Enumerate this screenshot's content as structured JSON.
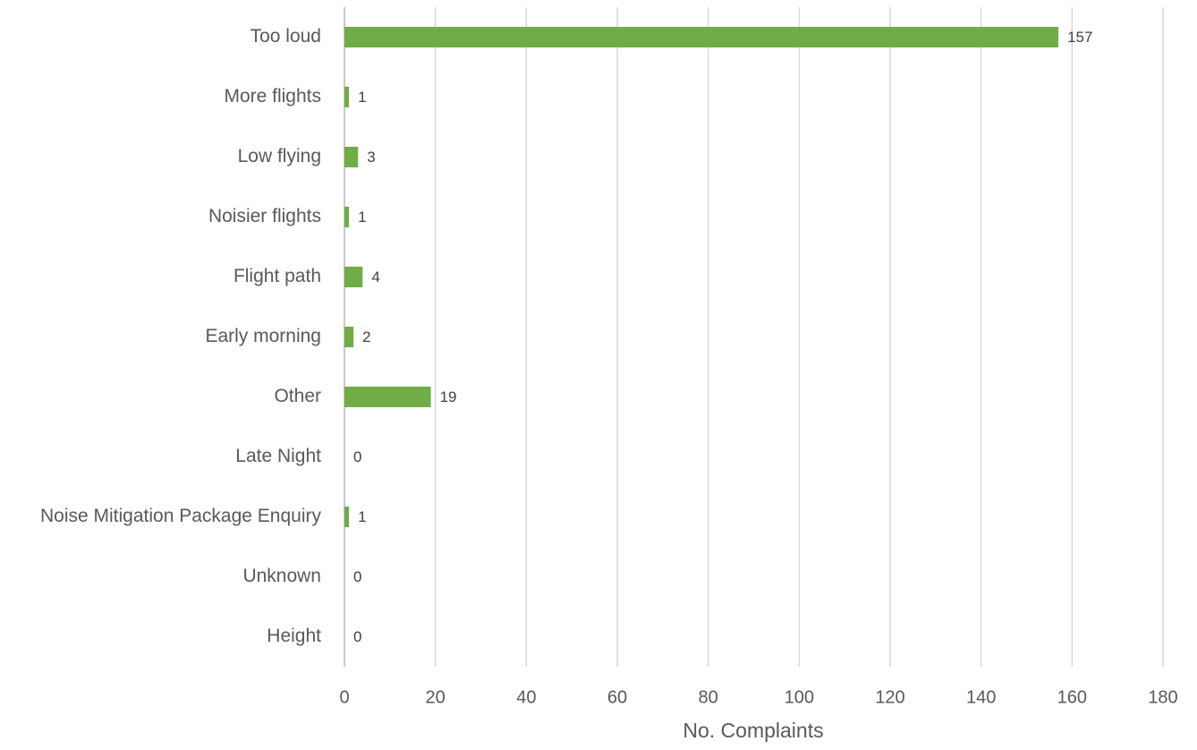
{
  "chart_data": {
    "type": "bar",
    "orientation": "horizontal",
    "x_label": "No. Complaints",
    "categories": [
      "Too loud",
      "More flights",
      "Low flying",
      "Noisier flights",
      "Flight path",
      "Early morning",
      "Other",
      "Late Night",
      "Noise Mitigation Package Enquiry",
      "Unknown",
      "Height"
    ],
    "values": [
      157,
      1,
      3,
      1,
      4,
      2,
      19,
      0,
      1,
      0,
      0
    ],
    "color": "#70ad47",
    "xlim": [
      0,
      180
    ],
    "xticks": [
      0,
      20,
      40,
      60,
      80,
      100,
      120,
      140,
      160,
      180
    ],
    "grid": true
  }
}
